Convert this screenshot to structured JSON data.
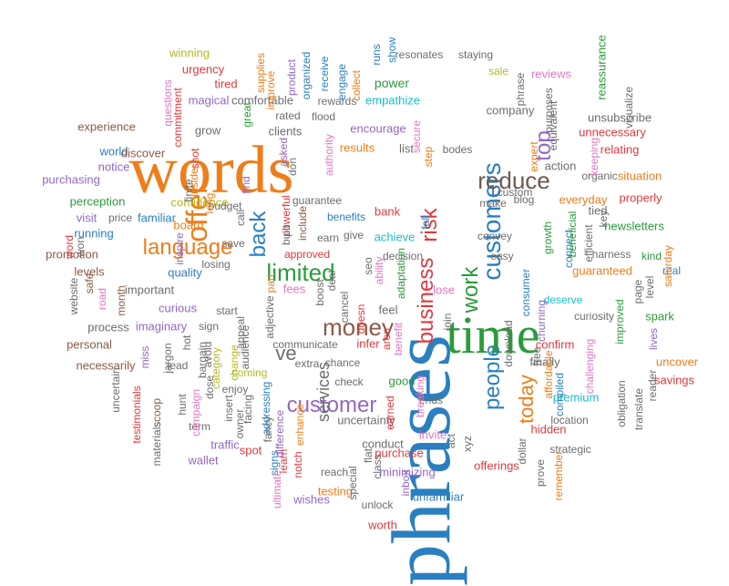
{
  "words": [
    {
      "text": "phrases",
      "color": "#2a7fc0",
      "size": "big",
      "family": "serif",
      "dir": "v"
    },
    {
      "text": "words",
      "color": "#ef7d1a",
      "size": "big",
      "family": "serif",
      "dir": "h"
    },
    {
      "text": "time",
      "color": "#2b9b3b",
      "size": "big",
      "family": "serif",
      "dir": "h"
    },
    {
      "text": "customers",
      "color": "#2a7fc0",
      "size": "large",
      "family": "sans",
      "dir": "v"
    },
    {
      "text": "offer",
      "color": "#ef7d1a",
      "size": "large",
      "family": "sans",
      "dir": "v"
    },
    {
      "text": "language",
      "color": "#ef7d1a",
      "size": "large",
      "family": "sans",
      "dir": "h"
    },
    {
      "text": "reduce",
      "color": "#6d5a50",
      "size": "large",
      "family": "sans",
      "dir": "h"
    },
    {
      "text": "business",
      "color": "#e0393e",
      "size": "large",
      "family": "sans",
      "dir": "v"
    },
    {
      "text": "limited",
      "color": "#2b9b3b",
      "size": "large",
      "family": "sans",
      "dir": "h"
    },
    {
      "text": "money",
      "color": "#8c5a44",
      "size": "large",
      "family": "sans",
      "dir": "h"
    },
    {
      "text": "customer",
      "color": "#9367c4",
      "size": "large",
      "family": "sans",
      "dir": "h"
    },
    {
      "text": "people",
      "color": "#2a7fc0",
      "size": "large",
      "family": "sans",
      "dir": "v"
    },
    {
      "text": "work",
      "color": "#2b9b3b",
      "size": "large",
      "family": "sans",
      "dir": "v"
    },
    {
      "text": "back",
      "color": "#2a7fc0",
      "size": "large",
      "family": "sans",
      "dir": "v"
    },
    {
      "text": "top",
      "color": "#9367c4",
      "size": "large",
      "family": "sans",
      "dir": "v"
    },
    {
      "text": "risk",
      "color": "#e0393e",
      "size": "large",
      "family": "sans",
      "dir": "v"
    },
    {
      "text": "today",
      "color": "#ef7d1a",
      "size": "large",
      "family": "sans",
      "dir": "v"
    },
    {
      "text": "services",
      "color": "#6d6d6d",
      "size": "large",
      "family": "sans",
      "dir": "v"
    },
    {
      "text": "ve",
      "color": "#6d6d6d",
      "size": "large",
      "family": "sans",
      "dir": "h"
    },
    {
      "text": "winning",
      "color": "#b5b823"
    },
    {
      "text": "urgency",
      "color": "#e0393e"
    },
    {
      "text": "tired",
      "color": "#e0393e"
    },
    {
      "text": "magical",
      "color": "#9367c4"
    },
    {
      "text": "comfortable",
      "color": "#6d6d6d"
    },
    {
      "text": "rated",
      "color": "#6d6d6d"
    },
    {
      "text": "flood",
      "color": "#6d6d6d"
    },
    {
      "text": "rewards",
      "color": "#6d6d6d"
    },
    {
      "text": "resonates",
      "color": "#6d6d6d"
    },
    {
      "text": "staying",
      "color": "#6d6d6d"
    },
    {
      "text": "sale",
      "color": "#b5b823"
    },
    {
      "text": "power",
      "color": "#2b9b3b"
    },
    {
      "text": "empathize",
      "color": "#17becf"
    },
    {
      "text": "encourage",
      "color": "#9367c4"
    },
    {
      "text": "experience",
      "color": "#8c5a44"
    },
    {
      "text": "grow",
      "color": "#6d6d6d"
    },
    {
      "text": "clients",
      "color": "#6d6d6d"
    },
    {
      "text": "results",
      "color": "#ef7d1a"
    },
    {
      "text": "list",
      "color": "#6d6d6d"
    },
    {
      "text": "company",
      "color": "#6d6d6d"
    },
    {
      "text": "reviews",
      "color": "#e377c2"
    },
    {
      "text": "reassurance",
      "color": "#2b9b3b",
      "dir": "v"
    },
    {
      "text": "unsubscribe",
      "color": "#6d6d6d"
    },
    {
      "text": "relating",
      "color": "#e0393e"
    },
    {
      "text": "unnecessary",
      "color": "#e0393e"
    },
    {
      "text": "world",
      "color": "#2a7fc0"
    },
    {
      "text": "discover",
      "color": "#8c5a44"
    },
    {
      "text": "notice",
      "color": "#9367c4"
    },
    {
      "text": "purchasing",
      "color": "#9367c4"
    },
    {
      "text": "perception",
      "color": "#2b9b3b"
    },
    {
      "text": "visit",
      "color": "#9367c4"
    },
    {
      "text": "price",
      "color": "#6d6d6d"
    },
    {
      "text": "familiar",
      "color": "#2a7fc0"
    },
    {
      "text": "confidence",
      "color": "#b5b823"
    },
    {
      "text": "guarantee",
      "color": "#6d6d6d"
    },
    {
      "text": "action",
      "color": "#6d6d6d"
    },
    {
      "text": "organic",
      "color": "#6d6d6d"
    },
    {
      "text": "situation",
      "color": "#ef7d1a"
    },
    {
      "text": "everyday",
      "color": "#ef7d1a"
    },
    {
      "text": "properly",
      "color": "#e0393e"
    },
    {
      "text": "running",
      "color": "#2a7fc0"
    },
    {
      "text": "promotion",
      "color": "#8c5a44"
    },
    {
      "text": "losing",
      "color": "#6d6d6d"
    },
    {
      "text": "board",
      "color": "#ef7d1a"
    },
    {
      "text": "save",
      "color": "#6d6d6d"
    },
    {
      "text": "earn",
      "color": "#6d6d6d"
    },
    {
      "text": "give",
      "color": "#6d6d6d"
    },
    {
      "text": "achieve",
      "color": "#17becf"
    },
    {
      "text": "convey",
      "color": "#6d6d6d"
    },
    {
      "text": "make",
      "color": "#6d6d6d"
    },
    {
      "text": "custom",
      "color": "#6d6d6d"
    },
    {
      "text": "easy",
      "color": "#6d6d6d"
    },
    {
      "text": "newsletters",
      "color": "#2b9b3b"
    },
    {
      "text": "harness",
      "color": "#6d6d6d"
    },
    {
      "text": "kind",
      "color": "#2b9b3b"
    },
    {
      "text": "real",
      "color": "#2a7fc0"
    },
    {
      "text": "guaranteed",
      "color": "#ef7d1a"
    },
    {
      "text": "levels",
      "color": "#8c5a44"
    },
    {
      "text": "quality",
      "color": "#2a7fc0"
    },
    {
      "text": "important",
      "color": "#6d6d6d"
    },
    {
      "text": "approved",
      "color": "#e0393e"
    },
    {
      "text": "fees",
      "color": "#e377c2"
    },
    {
      "text": "curious",
      "color": "#9367c4"
    },
    {
      "text": "imaginary",
      "color": "#9367c4"
    },
    {
      "text": "start",
      "color": "#6d6d6d"
    },
    {
      "text": "sign",
      "color": "#6d6d6d"
    },
    {
      "text": "feel",
      "color": "#6d6d6d"
    },
    {
      "text": "lose",
      "color": "#e377c2"
    },
    {
      "text": "deserve",
      "color": "#17becf"
    },
    {
      "text": "curiosity",
      "color": "#6d6d6d"
    },
    {
      "text": "spark",
      "color": "#2b9b3b"
    },
    {
      "text": "process",
      "color": "#6d6d6d"
    },
    {
      "text": "personal",
      "color": "#8c5a44"
    },
    {
      "text": "communicate",
      "color": "#6d6d6d"
    },
    {
      "text": "infer",
      "color": "#e0393e"
    },
    {
      "text": "extra",
      "color": "#6d6d6d"
    },
    {
      "text": "chance",
      "color": "#6d6d6d"
    },
    {
      "text": "necessarily",
      "color": "#8c5a44"
    },
    {
      "text": "lead",
      "color": "#6d6d6d"
    },
    {
      "text": "coming",
      "color": "#b5b823"
    },
    {
      "text": "check",
      "color": "#6d6d6d"
    },
    {
      "text": "good",
      "color": "#2b9b3b"
    },
    {
      "text": "confirm",
      "color": "#e0393e"
    },
    {
      "text": "finally",
      "color": "#6d6d6d"
    },
    {
      "text": "enjoy",
      "color": "#6d6d6d"
    },
    {
      "text": "ends",
      "color": "#6d6d6d"
    },
    {
      "text": "premium",
      "color": "#17becf"
    },
    {
      "text": "term",
      "color": "#6d6d6d"
    },
    {
      "text": "location",
      "color": "#6d6d6d"
    },
    {
      "text": "uncover",
      "color": "#ef7d1a"
    },
    {
      "text": "savings",
      "color": "#e0393e"
    },
    {
      "text": "hidden",
      "color": "#e0393e"
    },
    {
      "text": "invite",
      "color": "#e377c2"
    },
    {
      "text": "traffic",
      "color": "#9367c4"
    },
    {
      "text": "spot",
      "color": "#e0393e"
    },
    {
      "text": "uncertainty",
      "color": "#6d6d6d"
    },
    {
      "text": "conduct",
      "color": "#6d6d6d"
    },
    {
      "text": "purchase",
      "color": "#e0393e"
    },
    {
      "text": "strategic",
      "color": "#6d6d6d"
    },
    {
      "text": "wallet",
      "color": "#9367c4"
    },
    {
      "text": "reach",
      "color": "#6d6d6d"
    },
    {
      "text": "testing",
      "color": "#ef7d1a"
    },
    {
      "text": "minimizing",
      "color": "#9367c4"
    },
    {
      "text": "offerings",
      "color": "#e0393e"
    },
    {
      "text": "wishes",
      "color": "#9367c4"
    },
    {
      "text": "unlock",
      "color": "#6d6d6d"
    },
    {
      "text": "unfamiliar",
      "color": "#2a7fc0"
    },
    {
      "text": "worth",
      "color": "#e0393e"
    },
    {
      "text": "budget",
      "color": "#6d6d6d"
    },
    {
      "text": "bank",
      "color": "#e0393e"
    },
    {
      "text": "benefits",
      "color": "#2a7fc0"
    },
    {
      "text": "decision",
      "color": "#6d6d6d"
    },
    {
      "text": "blog",
      "color": "#6d6d6d"
    },
    {
      "text": "bodes",
      "color": "#6d6d6d"
    },
    {
      "text": "phrase",
      "color": "#6d6d6d",
      "dir": "v"
    },
    {
      "text": "purposes",
      "color": "#6d6d6d",
      "dir": "v"
    },
    {
      "text": "equivalent",
      "color": "#6d6d6d",
      "dir": "v"
    },
    {
      "text": "visualize",
      "color": "#6d6d6d",
      "dir": "v"
    },
    {
      "text": "questions",
      "color": "#e377c2",
      "dir": "v"
    },
    {
      "text": "commitment",
      "color": "#e0393e",
      "dir": "v"
    },
    {
      "text": "supplies",
      "color": "#ef7d1a",
      "dir": "v"
    },
    {
      "text": "product",
      "color": "#9367c4",
      "dir": "v"
    },
    {
      "text": "organized",
      "color": "#2a7fc0",
      "dir": "v"
    },
    {
      "text": "receive",
      "color": "#2a7fc0",
      "dir": "v"
    },
    {
      "text": "engage",
      "color": "#2a7fc0",
      "dir": "v"
    },
    {
      "text": "runs",
      "color": "#2a7fc0",
      "dir": "v"
    },
    {
      "text": "show",
      "color": "#2a7fc0",
      "dir": "v"
    },
    {
      "text": "shot",
      "color": "#e0393e",
      "dir": "v"
    },
    {
      "text": "great",
      "color": "#2b9b3b",
      "dir": "v"
    },
    {
      "text": "finite",
      "color": "#6d6d6d",
      "dir": "v"
    },
    {
      "text": "insider",
      "color": "#ef7d1a",
      "dir": "v"
    },
    {
      "text": "long",
      "color": "#ef7d1a",
      "dir": "v"
    },
    {
      "text": "find",
      "color": "#9367c4",
      "dir": "v"
    },
    {
      "text": "asked",
      "color": "#9367c4",
      "dir": "v"
    },
    {
      "text": "don",
      "color": "#6d6d6d",
      "dir": "v"
    },
    {
      "text": "authority",
      "color": "#e377c2",
      "dir": "v"
    },
    {
      "text": "secure",
      "color": "#e377c2",
      "dir": "v"
    },
    {
      "text": "step",
      "color": "#ef7d1a",
      "dir": "v"
    },
    {
      "text": "expert",
      "color": "#ef7d1a",
      "dir": "v"
    },
    {
      "text": "keeping",
      "color": "#e377c2",
      "dir": "v"
    },
    {
      "text": "inspire",
      "color": "#9367c4",
      "dir": "v"
    },
    {
      "text": "word",
      "color": "#e0393e",
      "dir": "v"
    },
    {
      "text": "won",
      "color": "#6d6d6d",
      "dir": "v"
    },
    {
      "text": "website",
      "color": "#6d6d6d",
      "dir": "v"
    },
    {
      "text": "safe",
      "color": "#8c5a44",
      "dir": "v"
    },
    {
      "text": "road",
      "color": "#e377c2",
      "dir": "v"
    },
    {
      "text": "month",
      "color": "#8c5a44",
      "dir": "v"
    },
    {
      "text": "call",
      "color": "#6d6d6d",
      "dir": "v"
    },
    {
      "text": "powerful",
      "color": "#e0393e",
      "dir": "v"
    },
    {
      "text": "include",
      "color": "#8c5a44",
      "dir": "v"
    },
    {
      "text": "built",
      "color": "#6d6d6d",
      "dir": "v"
    },
    {
      "text": "seo",
      "color": "#6d6d6d",
      "dir": "v"
    },
    {
      "text": "ability",
      "color": "#e377c2",
      "dir": "v"
    },
    {
      "text": "fall",
      "color": "#2a7fc0",
      "dir": "v"
    },
    {
      "text": "adaptation",
      "color": "#2b9b3b",
      "dir": "v"
    },
    {
      "text": "doesn",
      "color": "#e0393e",
      "dir": "v"
    },
    {
      "text": "aren",
      "color": "#e0393e",
      "dir": "v"
    },
    {
      "text": "benefit",
      "color": "#e377c2",
      "dir": "v"
    },
    {
      "text": "cancel",
      "color": "#6d6d6d",
      "dir": "v"
    },
    {
      "text": "deal",
      "color": "#6d6d6d",
      "dir": "v"
    },
    {
      "text": "boost",
      "color": "#6d6d6d",
      "dir": "v"
    },
    {
      "text": "adjective",
      "color": "#6d6d6d",
      "dir": "v"
    },
    {
      "text": "part",
      "color": "#ef7d1a",
      "dir": "v"
    },
    {
      "text": "appeal",
      "color": "#6d6d6d",
      "dir": "v"
    },
    {
      "text": "audience",
      "color": "#6d6d6d",
      "dir": "v"
    },
    {
      "text": "change",
      "color": "#b5b823",
      "dir": "v"
    },
    {
      "text": "hot",
      "color": "#6d6d6d",
      "dir": "v"
    },
    {
      "text": "bargain",
      "color": "#6d6d6d",
      "dir": "v"
    },
    {
      "text": "category",
      "color": "#b5b823",
      "dir": "v"
    },
    {
      "text": "jargon",
      "color": "#6d6d6d",
      "dir": "v"
    },
    {
      "text": "miss",
      "color": "#9367c4",
      "dir": "v"
    },
    {
      "text": "avoid",
      "color": "#6d6d6d",
      "dir": "v"
    },
    {
      "text": "campaign",
      "color": "#e377c2",
      "dir": "v"
    },
    {
      "text": "dose",
      "color": "#6d6d6d",
      "dir": "v"
    },
    {
      "text": "addressing",
      "color": "#2a7fc0",
      "dir": "v"
    },
    {
      "text": "scoop",
      "color": "#8c5a44",
      "dir": "v"
    },
    {
      "text": "testimonials",
      "color": "#e0393e",
      "dir": "v"
    },
    {
      "text": "uncertain",
      "color": "#6d6d6d",
      "dir": "v"
    },
    {
      "text": "materials",
      "color": "#6d6d6d",
      "dir": "v"
    },
    {
      "text": "hunt",
      "color": "#6d6d6d",
      "dir": "v"
    },
    {
      "text": "insert",
      "color": "#6d6d6d",
      "dir": "v"
    },
    {
      "text": "owner",
      "color": "#6d6d6d",
      "dir": "v"
    },
    {
      "text": "facing",
      "color": "#6d6d6d",
      "dir": "v"
    },
    {
      "text": "fancy",
      "color": "#6d6d6d",
      "dir": "v"
    },
    {
      "text": "difference",
      "color": "#9367c4",
      "dir": "v"
    },
    {
      "text": "enhance",
      "color": "#ef7d1a",
      "dir": "v"
    },
    {
      "text": "learn",
      "color": "#e0393e",
      "dir": "v"
    },
    {
      "text": "notch",
      "color": "#e0393e",
      "dir": "v"
    },
    {
      "text": "signs",
      "color": "#2a7fc0",
      "dir": "v"
    },
    {
      "text": "ultimate",
      "color": "#e377c2",
      "dir": "v"
    },
    {
      "text": "special",
      "color": "#6d6d6d",
      "dir": "v"
    },
    {
      "text": "flat",
      "color": "#6d6d6d",
      "dir": "v"
    },
    {
      "text": "class",
      "color": "#6d6d6d",
      "dir": "v"
    },
    {
      "text": "collect",
      "color": "#ef7d1a",
      "dir": "v"
    },
    {
      "text": "improve",
      "color": "#ef7d1a",
      "dir": "v"
    },
    {
      "text": "earned",
      "color": "#e0393e",
      "dir": "v"
    },
    {
      "text": "breaking",
      "color": "#e377c2",
      "dir": "v"
    },
    {
      "text": "inbox",
      "color": "#9367c4",
      "dir": "v"
    },
    {
      "text": "act",
      "color": "#6d6d6d",
      "dir": "v"
    },
    {
      "text": "xyz",
      "color": "#6d6d6d",
      "dir": "v"
    },
    {
      "text": "join",
      "color": "#6d6d6d",
      "dir": "v"
    },
    {
      "text": "consumer",
      "color": "#2a7fc0",
      "dir": "v"
    },
    {
      "text": "download",
      "color": "#6d6d6d",
      "dir": "v"
    },
    {
      "text": "free",
      "color": "#6d6d6d",
      "dir": "v"
    },
    {
      "text": "affordable",
      "color": "#ef7d1a",
      "dir": "v"
    },
    {
      "text": "compiled",
      "color": "#2a7fc0",
      "dir": "v"
    },
    {
      "text": "dollar",
      "color": "#6d6d6d",
      "dir": "v"
    },
    {
      "text": "prove",
      "color": "#6d6d6d",
      "dir": "v"
    },
    {
      "text": "remember",
      "color": "#ef7d1a",
      "dir": "v"
    },
    {
      "text": "challenging",
      "color": "#e377c2",
      "dir": "v"
    },
    {
      "text": "churning",
      "color": "#9367c4",
      "dir": "v"
    },
    {
      "text": "growth",
      "color": "#2b9b3b",
      "dir": "v"
    },
    {
      "text": "beneficial",
      "color": "#2b9b3b",
      "dir": "v"
    },
    {
      "text": "connect",
      "color": "#2a7fc0",
      "dir": "v"
    },
    {
      "text": "efficient",
      "color": "#6d6d6d",
      "dir": "v"
    },
    {
      "text": "key",
      "color": "#6d6d6d",
      "dir": "v"
    },
    {
      "text": "tied",
      "color": "#6d6d6d"
    },
    {
      "text": "level",
      "color": "#6d6d6d",
      "dir": "v"
    },
    {
      "text": "improved",
      "color": "#2b9b3b",
      "dir": "v"
    },
    {
      "text": "page",
      "color": "#6d6d6d",
      "dir": "v"
    },
    {
      "text": "saturday",
      "color": "#ef7d1a",
      "dir": "v"
    },
    {
      "text": "lives",
      "color": "#9367c4",
      "dir": "v"
    },
    {
      "text": "obligation",
      "color": "#6d6d6d",
      "dir": "v"
    },
    {
      "text": "reader",
      "color": "#6d6d6d",
      "dir": "v"
    },
    {
      "text": "translate",
      "color": "#6d6d6d",
      "dir": "v"
    }
  ]
}
